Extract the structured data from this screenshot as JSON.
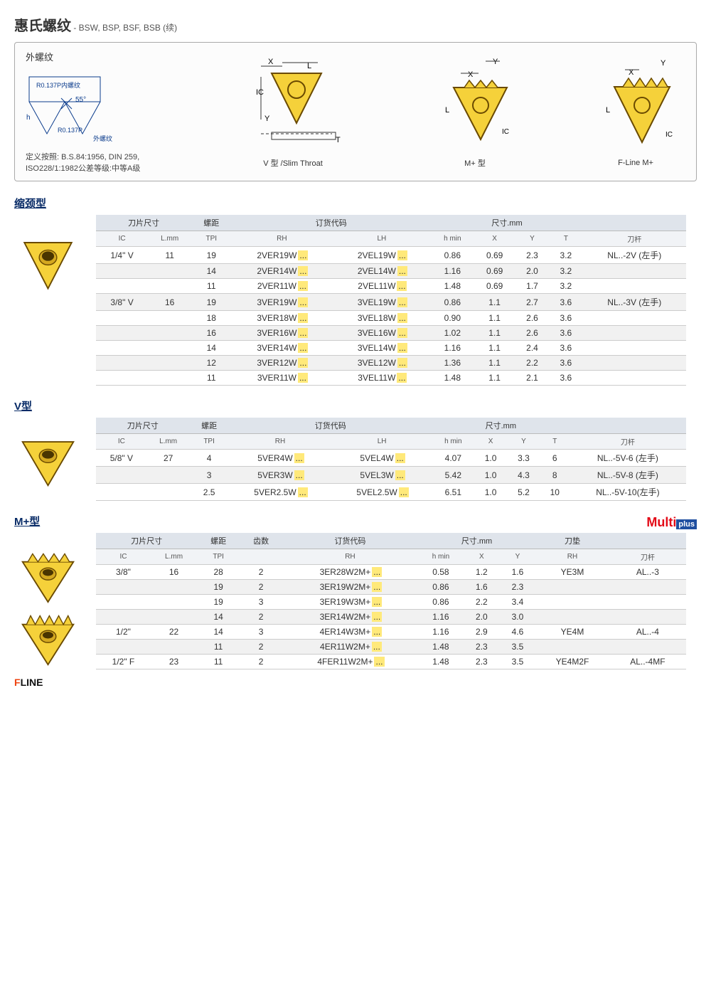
{
  "page": {
    "title": "惠氏螺纹",
    "subtitle": "- BSW, BSP, BSF, BSB (续)"
  },
  "diagram": {
    "external_label": "外螺纹",
    "profile_r_inner": "R0.137P内螺纹",
    "profile_angle": "55°",
    "profile_h": "h",
    "profile_r_outer": "R0.137P",
    "profile_outer_label": "外螺纹",
    "definition": "定义按照: B.S.84:1956, DIN 259,\nISO228/1:1982公差等级:中等A级",
    "v_label": "V 型 /Slim Throat",
    "m_label": "M+ 型",
    "f_label": "F-Line M+"
  },
  "sections": {
    "slim": {
      "title": "缩颈型",
      "headers": {
        "insert_size": "刀片尺寸",
        "pitch": "螺距",
        "order": "订货代码",
        "dims": "尺寸.mm",
        "ic": "IC",
        "lmm": "L.mm",
        "tpi": "TPI",
        "rh": "RH",
        "lh": "LH",
        "hmin": "h min",
        "x": "X",
        "y": "Y",
        "t": "T",
        "holder": "刀杆"
      },
      "rows": [
        {
          "ic": "1/4\" V",
          "lmm": "11",
          "tpi": "19",
          "rh": "2VER19W...",
          "lh": "2VEL19W...",
          "hmin": "0.86",
          "x": "0.69",
          "y": "2.3",
          "t": "3.2",
          "holder": "NL..-2V (左手)",
          "alt": 0
        },
        {
          "ic": "",
          "lmm": "",
          "tpi": "14",
          "rh": "2VER14W...",
          "lh": "2VEL14W...",
          "hmin": "1.16",
          "x": "0.69",
          "y": "2.0",
          "t": "3.2",
          "holder": "",
          "alt": 1
        },
        {
          "ic": "",
          "lmm": "",
          "tpi": "11",
          "rh": "2VER11W...",
          "lh": "2VEL11W...",
          "hmin": "1.48",
          "x": "0.69",
          "y": "1.7",
          "t": "3.2",
          "holder": "",
          "alt": 0
        },
        {
          "ic": "3/8\" V",
          "lmm": "16",
          "tpi": "19",
          "rh": "3VER19W...",
          "lh": "3VEL19W...",
          "hmin": "0.86",
          "x": "1.1",
          "y": "2.7",
          "t": "3.6",
          "holder": "NL..-3V (左手)",
          "alt": 1
        },
        {
          "ic": "",
          "lmm": "",
          "tpi": "18",
          "rh": "3VER18W...",
          "lh": "3VEL18W...",
          "hmin": "0.90",
          "x": "1.1",
          "y": "2.6",
          "t": "3.6",
          "holder": "",
          "alt": 0
        },
        {
          "ic": "",
          "lmm": "",
          "tpi": "16",
          "rh": "3VER16W...",
          "lh": "3VEL16W...",
          "hmin": "1.02",
          "x": "1.1",
          "y": "2.6",
          "t": "3.6",
          "holder": "",
          "alt": 1
        },
        {
          "ic": "",
          "lmm": "",
          "tpi": "14",
          "rh": "3VER14W...",
          "lh": "3VEL14W...",
          "hmin": "1.16",
          "x": "1.1",
          "y": "2.4",
          "t": "3.6",
          "holder": "",
          "alt": 0
        },
        {
          "ic": "",
          "lmm": "",
          "tpi": "12",
          "rh": "3VER12W...",
          "lh": "3VEL12W...",
          "hmin": "1.36",
          "x": "1.1",
          "y": "2.2",
          "t": "3.6",
          "holder": "",
          "alt": 1
        },
        {
          "ic": "",
          "lmm": "",
          "tpi": "11",
          "rh": "3VER11W...",
          "lh": "3VEL11W...",
          "hmin": "1.48",
          "x": "1.1",
          "y": "2.1",
          "t": "3.6",
          "holder": "",
          "alt": 0
        }
      ]
    },
    "vtype": {
      "title": "V型",
      "headers": {
        "insert_size": "刀片尺寸",
        "pitch": "螺距",
        "order": "订货代码",
        "dims": "尺寸.mm",
        "ic": "IC",
        "lmm": "L.mm",
        "tpi": "TPI",
        "rh": "RH",
        "lh": "LH",
        "hmin": "h min",
        "x": "X",
        "y": "Y",
        "t": "T",
        "holder": "刀杆"
      },
      "rows": [
        {
          "ic": "5/8\" V",
          "lmm": "27",
          "tpi": "4",
          "rh": "5VER4W...",
          "lh": "5VEL4W...",
          "hmin": "4.07",
          "x": "1.0",
          "y": "3.3",
          "t": "6",
          "holder": "NL..-5V-6 (左手)",
          "alt": 0
        },
        {
          "ic": "",
          "lmm": "",
          "tpi": "3",
          "rh": "5VER3W...",
          "lh": "5VEL3W...",
          "hmin": "5.42",
          "x": "1.0",
          "y": "4.3",
          "t": "8",
          "holder": "NL..-5V-8 (左手)",
          "alt": 1
        },
        {
          "ic": "",
          "lmm": "",
          "tpi": "2.5",
          "rh": "5VER2.5W...",
          "lh": "5VEL2.5W...",
          "hmin": "6.51",
          "x": "1.0",
          "y": "5.2",
          "t": "10",
          "holder": "NL..-5V-10(左手)",
          "alt": 0
        }
      ]
    },
    "mtype": {
      "title": "M+型",
      "logo_multi": "Multi",
      "logo_plus": "plus",
      "headers": {
        "insert_size": "刀片尺寸",
        "pitch_": "螺距",
        "teeth": "齿数",
        "order": "订货代码",
        "dims": "尺寸.mm",
        "shim": "刀垫",
        "ic": "IC",
        "lmm": "L.mm",
        "tpi": "TPI",
        "rh": "RH",
        "hmin": "h min",
        "x": "X",
        "y": "Y",
        "rh_shim": "RH",
        "holder": "刀杆"
      },
      "rows": [
        {
          "ic": "3/8\"",
          "lmm": "16",
          "tpi": "28",
          "teeth": "2",
          "rh": "3ER28W2M+...",
          "hmin": "0.58",
          "x": "1.2",
          "y": "1.6",
          "shim": "YE3M",
          "holder": "AL..-3",
          "alt": 0
        },
        {
          "ic": "",
          "lmm": "",
          "tpi": "19",
          "teeth": "2",
          "rh": "3ER19W2M+...",
          "hmin": "0.86",
          "x": "1.6",
          "y": "2.3",
          "shim": "",
          "holder": "",
          "alt": 1
        },
        {
          "ic": "",
          "lmm": "",
          "tpi": "19",
          "teeth": "3",
          "rh": "3ER19W3M+...",
          "hmin": "0.86",
          "x": "2.2",
          "y": "3.4",
          "shim": "",
          "holder": "",
          "alt": 0
        },
        {
          "ic": "",
          "lmm": "",
          "tpi": "14",
          "teeth": "2",
          "rh": "3ER14W2M+...",
          "hmin": "1.16",
          "x": "2.0",
          "y": "3.0",
          "shim": "",
          "holder": "",
          "alt": 1
        },
        {
          "ic": "1/2\"",
          "lmm": "22",
          "tpi": "14",
          "teeth": "3",
          "rh": "4ER14W3M+...",
          "hmin": "1.16",
          "x": "2.9",
          "y": "4.6",
          "shim": "YE4M",
          "holder": "AL..-4",
          "alt": 0
        },
        {
          "ic": "",
          "lmm": "",
          "tpi": "11",
          "teeth": "2",
          "rh": "4ER11W2M+...",
          "hmin": "1.48",
          "x": "2.3",
          "y": "3.5",
          "shim": "",
          "holder": "",
          "alt": 1
        },
        {
          "ic": "1/2\" F",
          "lmm": "23",
          "tpi": "11",
          "teeth": "2",
          "rh": "4FER11W2M+...",
          "hmin": "1.48",
          "x": "2.3",
          "y": "3.5",
          "shim": "YE4M2F",
          "holder": "AL..-4MF",
          "alt": 0
        }
      ]
    }
  },
  "fline": {
    "f": "F",
    "line": "LINE"
  },
  "colors": {
    "insert_fill": "#f5d13a",
    "insert_stroke": "#6a4a00",
    "highlight": "#ffe97a"
  }
}
